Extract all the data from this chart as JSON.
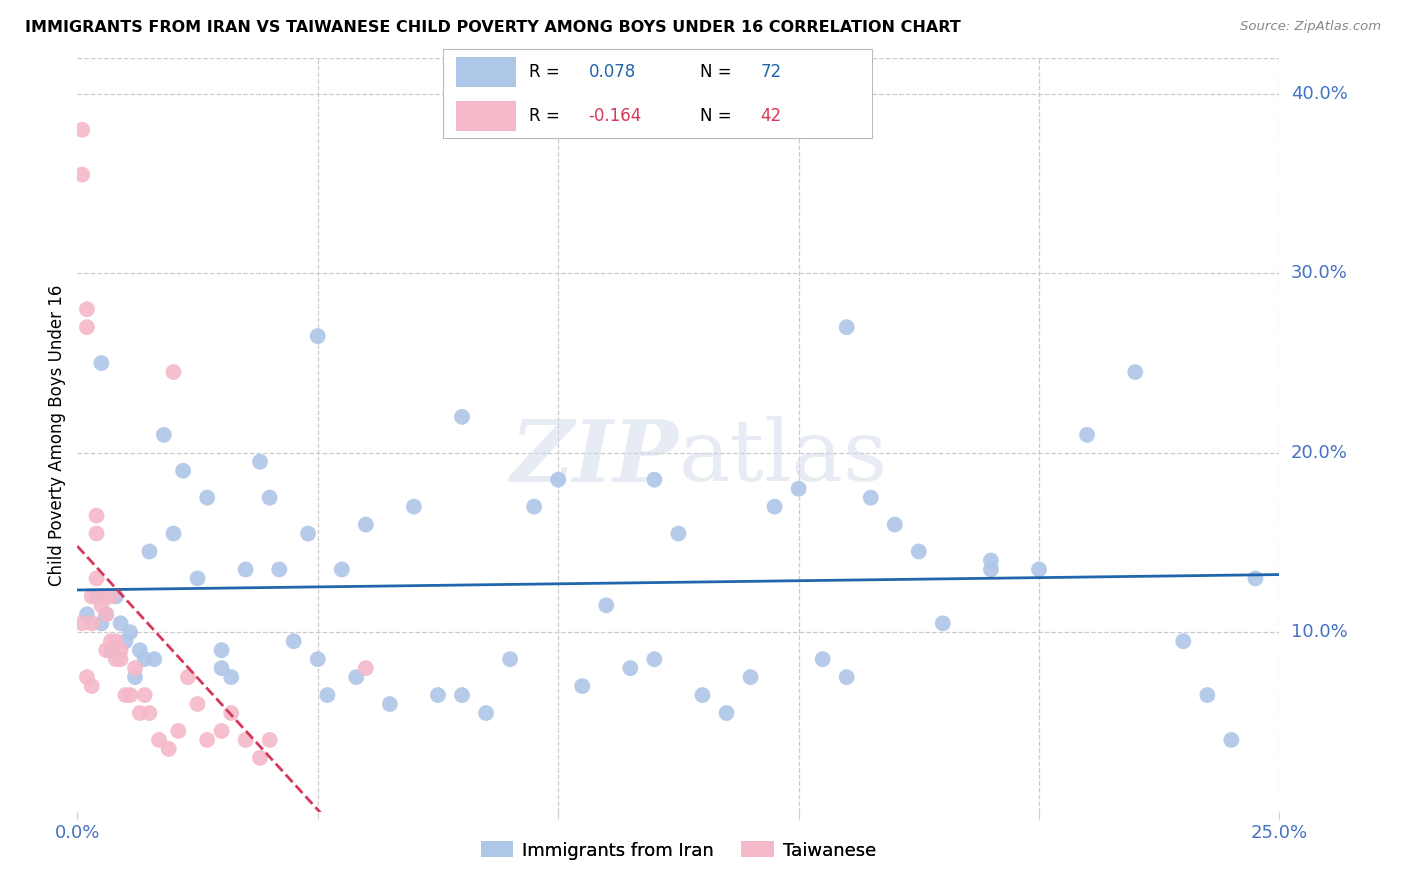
{
  "title": "IMMIGRANTS FROM IRAN VS TAIWANESE CHILD POVERTY AMONG BOYS UNDER 16 CORRELATION CHART",
  "source": "Source: ZipAtlas.com",
  "ylabel": "Child Poverty Among Boys Under 16",
  "xlim": [
    0.0,
    0.25
  ],
  "ylim": [
    0.0,
    0.42
  ],
  "iran_color": "#aec6e8",
  "iran_line_color": "#2166ac",
  "taiwanese_color": "#f4b8c8",
  "taiwanese_line_color": "#d6385a",
  "watermark_zip": "ZIP",
  "watermark_atlas": "atlas",
  "grid_color": "#cccccc",
  "iran_points_x": [
    0.002,
    0.004,
    0.005,
    0.006,
    0.007,
    0.008,
    0.009,
    0.01,
    0.011,
    0.012,
    0.013,
    0.014,
    0.015,
    0.016,
    0.018,
    0.02,
    0.022,
    0.025,
    0.027,
    0.03,
    0.032,
    0.035,
    0.038,
    0.04,
    0.042,
    0.045,
    0.048,
    0.05,
    0.052,
    0.055,
    0.058,
    0.06,
    0.065,
    0.07,
    0.075,
    0.08,
    0.085,
    0.09,
    0.095,
    0.1,
    0.105,
    0.11,
    0.115,
    0.12,
    0.125,
    0.13,
    0.135,
    0.14,
    0.145,
    0.15,
    0.155,
    0.16,
    0.165,
    0.17,
    0.175,
    0.18,
    0.19,
    0.2,
    0.21,
    0.22,
    0.23,
    0.235,
    0.24,
    0.245,
    0.05,
    0.08,
    0.12,
    0.16,
    0.19,
    0.005,
    0.03
  ],
  "iran_points_y": [
    0.11,
    0.12,
    0.105,
    0.11,
    0.09,
    0.12,
    0.105,
    0.095,
    0.1,
    0.075,
    0.09,
    0.085,
    0.145,
    0.085,
    0.21,
    0.155,
    0.19,
    0.13,
    0.175,
    0.09,
    0.075,
    0.135,
    0.195,
    0.175,
    0.135,
    0.095,
    0.155,
    0.085,
    0.065,
    0.135,
    0.075,
    0.16,
    0.06,
    0.17,
    0.065,
    0.065,
    0.055,
    0.085,
    0.17,
    0.185,
    0.07,
    0.115,
    0.08,
    0.185,
    0.155,
    0.065,
    0.055,
    0.075,
    0.17,
    0.18,
    0.085,
    0.27,
    0.175,
    0.16,
    0.145,
    0.105,
    0.135,
    0.135,
    0.21,
    0.245,
    0.095,
    0.065,
    0.04,
    0.13,
    0.265,
    0.22,
    0.085,
    0.075,
    0.14,
    0.25,
    0.08
  ],
  "taiwanese_points_x": [
    0.001,
    0.001,
    0.001,
    0.002,
    0.002,
    0.002,
    0.003,
    0.003,
    0.003,
    0.004,
    0.004,
    0.004,
    0.005,
    0.005,
    0.005,
    0.006,
    0.006,
    0.007,
    0.007,
    0.008,
    0.008,
    0.009,
    0.009,
    0.01,
    0.011,
    0.012,
    0.013,
    0.014,
    0.015,
    0.017,
    0.019,
    0.021,
    0.023,
    0.025,
    0.027,
    0.03,
    0.032,
    0.035,
    0.038,
    0.04,
    0.02,
    0.06
  ],
  "taiwanese_points_y": [
    0.38,
    0.355,
    0.105,
    0.27,
    0.28,
    0.075,
    0.12,
    0.105,
    0.07,
    0.165,
    0.155,
    0.13,
    0.12,
    0.115,
    0.12,
    0.11,
    0.09,
    0.12,
    0.095,
    0.095,
    0.085,
    0.09,
    0.085,
    0.065,
    0.065,
    0.08,
    0.055,
    0.065,
    0.055,
    0.04,
    0.035,
    0.045,
    0.075,
    0.06,
    0.04,
    0.045,
    0.055,
    0.04,
    0.03,
    0.04,
    0.245,
    0.08
  ]
}
